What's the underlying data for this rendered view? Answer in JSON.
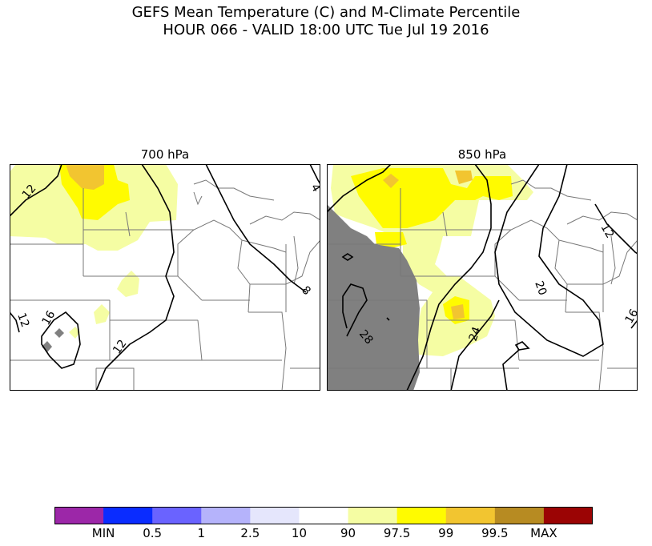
{
  "title": {
    "line1": "GEFS Mean Temperature (C) and M-Climate Percentile",
    "line2": "HOUR 066 - VALID 18:00 UTC Tue Jul 19 2016"
  },
  "panels": [
    {
      "title": "700 hPa",
      "contour_labels": [
        "12",
        "4",
        "8",
        "16",
        "12",
        "12"
      ]
    },
    {
      "title": "850 hPa",
      "contour_labels": [
        "12",
        "20",
        "24",
        "28",
        "16"
      ]
    }
  ],
  "colorbar": {
    "bins": [
      {
        "color": "#9c27a8"
      },
      {
        "color": "#0a2cff"
      },
      {
        "color": "#6a63ff"
      },
      {
        "color": "#b5b3fb"
      },
      {
        "color": "#e5e6fc"
      },
      {
        "color": "#ffffff"
      },
      {
        "color": "#f5fda3"
      },
      {
        "color": "#fffb00"
      },
      {
        "color": "#f2c530"
      },
      {
        "color": "#b78b22"
      },
      {
        "color": "#9b0404"
      }
    ],
    "labels": [
      "MIN",
      "0.5",
      "1",
      "2.5",
      "10",
      "90",
      "97.5",
      "99",
      "99.5",
      "MAX"
    ]
  },
  "colors": {
    "lightyellow": "#f5fda3",
    "yellow": "#fffb00",
    "gold": "#f2c530",
    "gray": "#808080",
    "border": "#777777"
  }
}
